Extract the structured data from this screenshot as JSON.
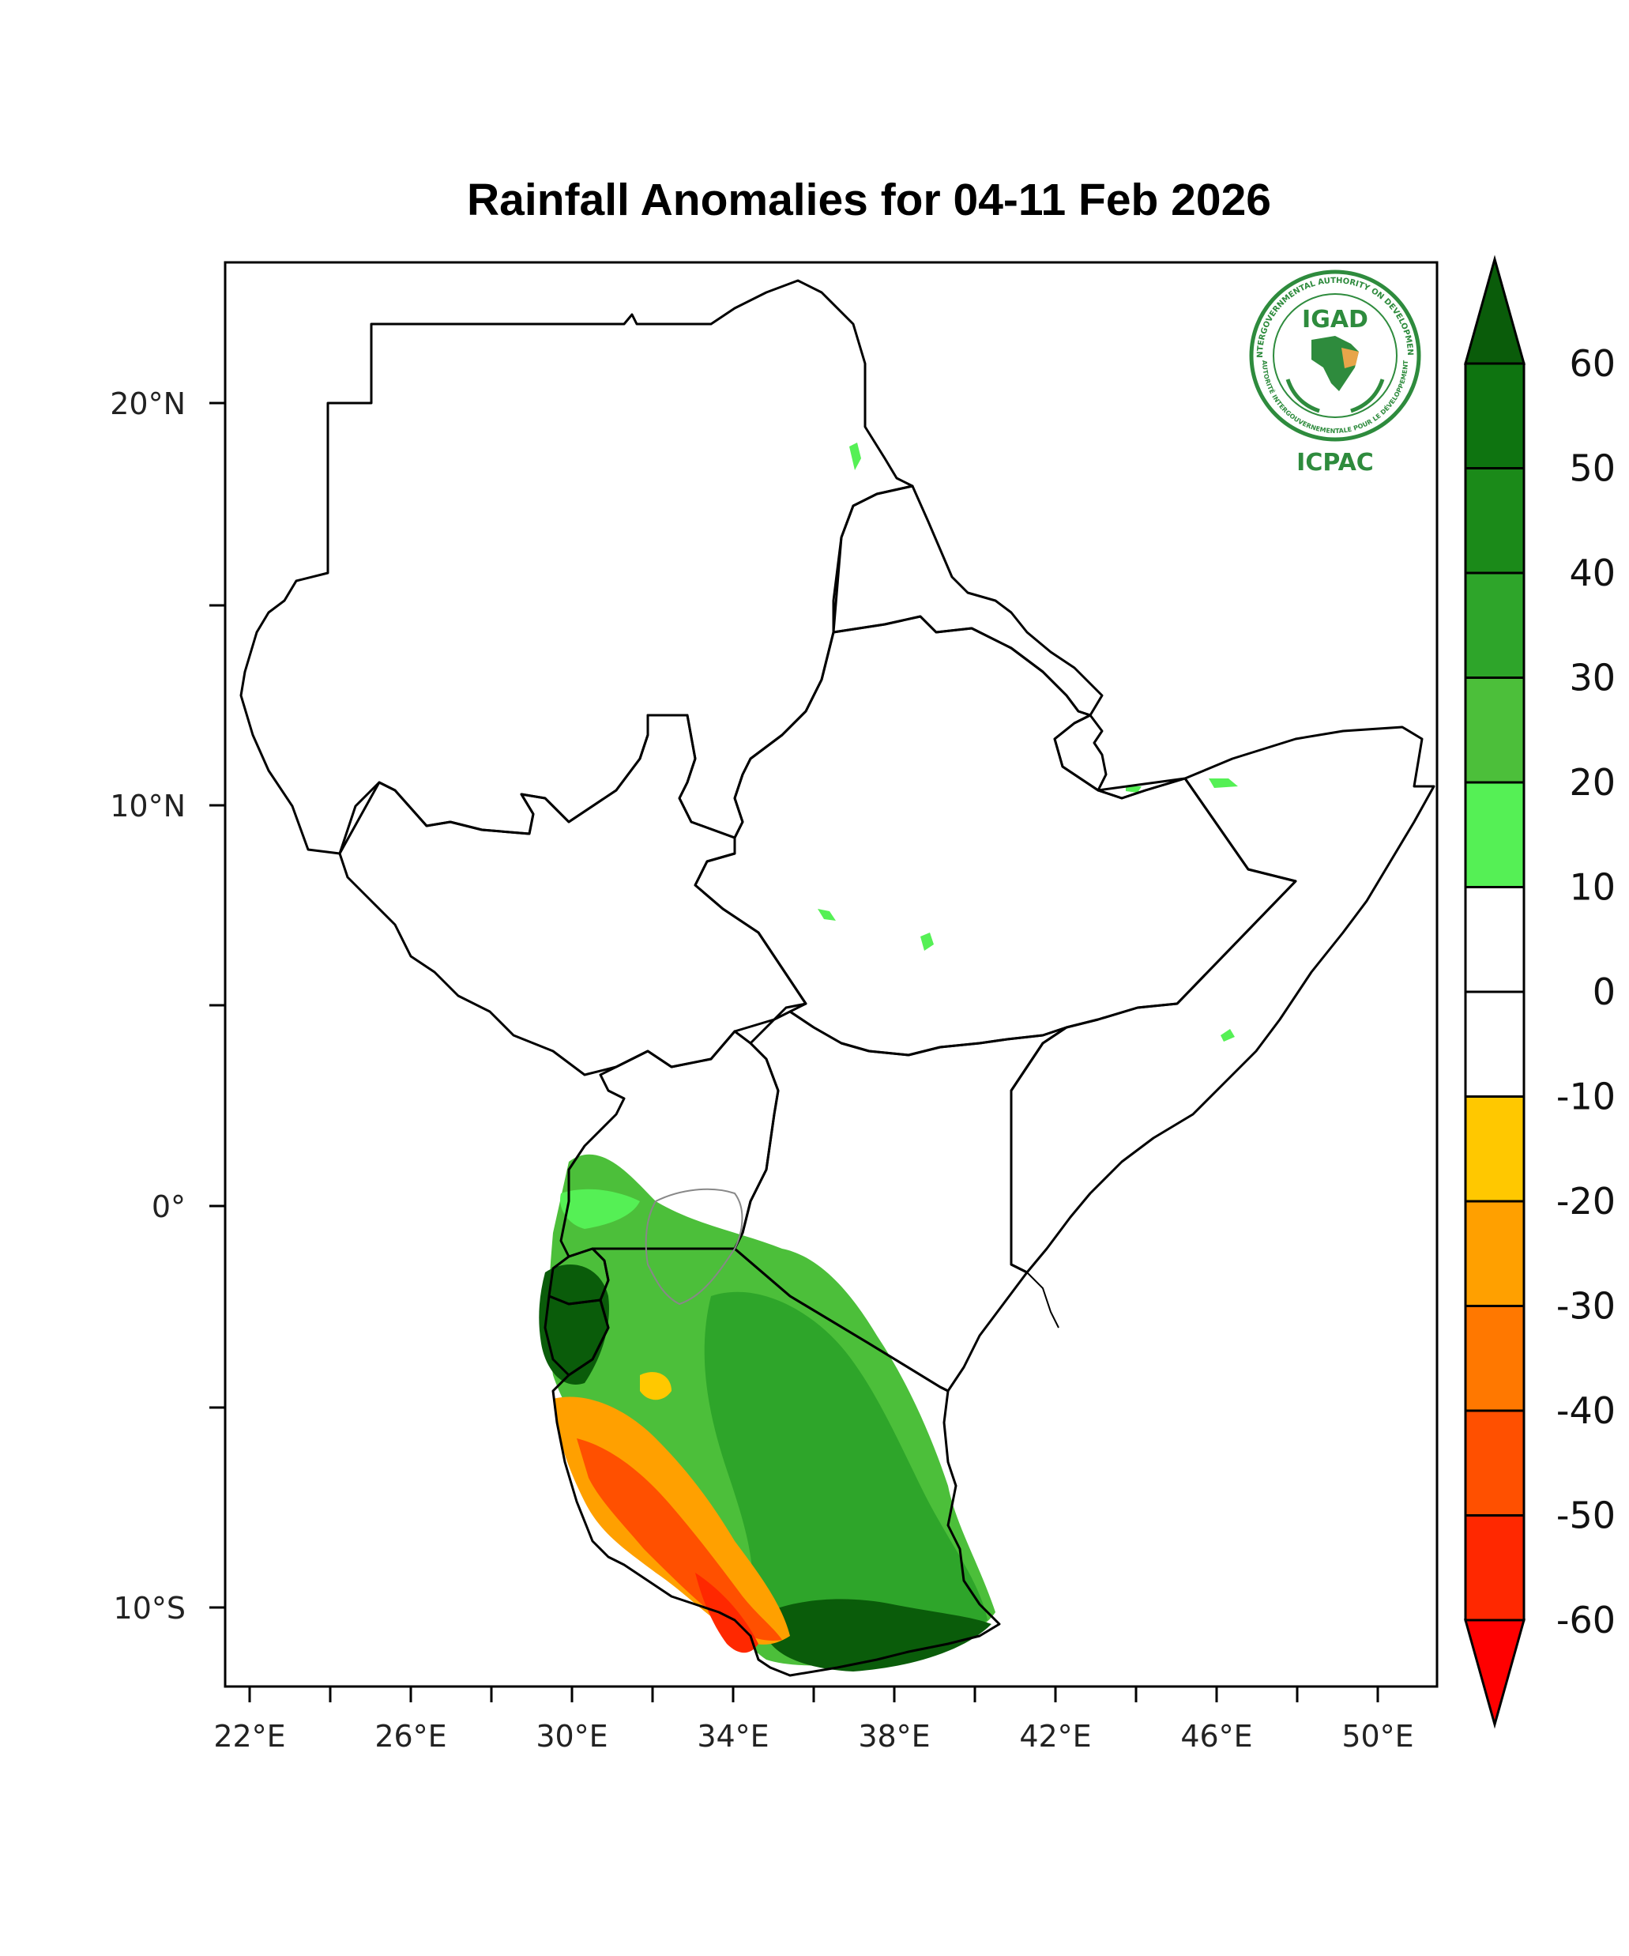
{
  "map": {
    "title": "Rainfall Anomalies for 04-11 Feb 2026",
    "lat_labels": [
      "20°N",
      "10°N",
      "0°",
      "10°S"
    ],
    "lon_labels": [
      "22°E",
      "26°E",
      "30°E",
      "34°E",
      "38°E",
      "42°E",
      "46°E",
      "50°E"
    ],
    "extent": {
      "lon_min": 21.4,
      "lon_max": 51.4,
      "lat_min": -11.7,
      "lat_max": 23.5
    }
  },
  "logo": {
    "name": "IGAD",
    "org": "ICPAC",
    "ring_text_top": "INTERGOVERNMENTAL AUTHORITY ON DEVELOPMENT",
    "ring_text_bottom": "AUTORITÉ INTERGOUVERNEMENTALE POUR LE DÉVELOPPEMENT"
  },
  "colorbar": {
    "labels": [
      "60",
      "50",
      "40",
      "30",
      "20",
      "10",
      "0",
      "-10",
      "-20",
      "-30",
      "-40",
      "-50",
      "-60"
    ],
    "colors": [
      "#0a5c0a",
      "#0e7410",
      "#1b8a19",
      "#2ea52a",
      "#4cbf3a",
      "#55f055",
      "#ffffff",
      "#ffffff",
      "#ffc800",
      "#ffa000",
      "#ff7800",
      "#ff5000",
      "#ff2800",
      "#ff0000"
    ],
    "outline": "#000000"
  },
  "anomaly_colors": {
    "wet_low": "#55f055",
    "wet_mid": "#4cbf3a",
    "wet_high": "#2ea52a",
    "wet_very_high": "#0e7410",
    "wet_extreme": "#0a5c0a",
    "dry_low": "#ffc800",
    "dry_mid": "#ffa000",
    "dry_high": "#ff7800",
    "dry_very_high": "#ff5000",
    "dry_extreme": "#ff2800"
  }
}
